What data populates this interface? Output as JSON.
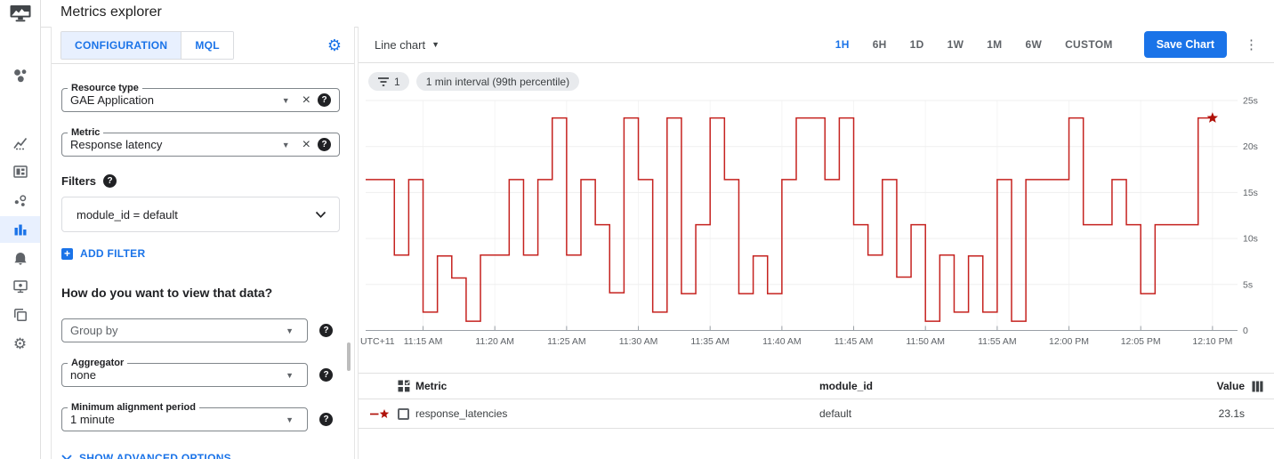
{
  "header": {
    "title": "Metrics explorer",
    "logo_icon": "monitoring-screen-chart-icon"
  },
  "sidebar": {
    "items": [
      {
        "icon": "dots-cluster-icon",
        "name": "overview",
        "active": false
      },
      {
        "icon": "trending-chart-icon",
        "name": "metrics",
        "active": false
      },
      {
        "icon": "dashboard-icon",
        "name": "dashboards",
        "active": false
      },
      {
        "icon": "groups-dots-icon",
        "name": "groups",
        "active": false
      },
      {
        "icon": "bar-chart-icon",
        "name": "metrics-explorer",
        "active": true
      },
      {
        "icon": "bell-icon",
        "name": "alerting",
        "active": false
      },
      {
        "icon": "uptime-monitor-icon",
        "name": "uptime-checks",
        "active": false
      },
      {
        "icon": "copy-layers-icon",
        "name": "services",
        "active": false
      },
      {
        "icon": "gear-icon",
        "name": "settings",
        "active": false
      }
    ]
  },
  "config_panel": {
    "tabs": [
      {
        "label": "CONFIGURATION",
        "active": true
      },
      {
        "label": "MQL",
        "active": false
      }
    ],
    "resource_type": {
      "label": "Resource type",
      "value": "GAE Application"
    },
    "metric": {
      "label": "Metric",
      "value": "Response latency"
    },
    "filters_label": "Filters",
    "filter_value": "module_id = default",
    "add_filter_label": "ADD FILTER",
    "view_question": "How do you want to view that data?",
    "group_by": {
      "placeholder": "Group by"
    },
    "aggregator": {
      "label": "Aggregator",
      "value": "none"
    },
    "min_alignment": {
      "label": "Minimum alignment period",
      "value": "1 minute"
    },
    "show_advanced_label": "SHOW ADVANCED OPTIONS"
  },
  "chart_panel": {
    "chart_type_label": "Line chart",
    "time_ranges": [
      "1H",
      "6H",
      "1D",
      "1W",
      "1M",
      "6W",
      "CUSTOM"
    ],
    "active_time_range": "1H",
    "save_button_label": "Save Chart",
    "filter_chip_count": "1",
    "interval_chip": "1 min interval (99th percentile)"
  },
  "chart_data": {
    "type": "line",
    "step": true,
    "title": "",
    "xlabel": "",
    "ylabel": "",
    "unit": "s",
    "ylim": [
      0,
      25
    ],
    "grid": true,
    "x_axis_prefix": "UTC+11",
    "x_start": "11:11 AM",
    "x_end": "12:10 PM",
    "x_interval_minutes": 1,
    "x_tick_start_minute": 4,
    "x_tick_step": 5,
    "x_tick_labels": [
      "11:15 AM",
      "11:20 AM",
      "11:25 AM",
      "11:30 AM",
      "11:35 AM",
      "11:40 AM",
      "11:45 AM",
      "11:50 AM",
      "11:55 AM",
      "12:00 PM",
      "12:05 PM",
      "12:10 PM"
    ],
    "y_ticks": [
      {
        "value": 25,
        "label": "25s"
      },
      {
        "value": 20,
        "label": "20s"
      },
      {
        "value": 15,
        "label": "15s"
      },
      {
        "value": 10,
        "label": "10s"
      },
      {
        "value": 5,
        "label": "5s"
      },
      {
        "value": 0,
        "label": "0"
      }
    ],
    "series": [
      {
        "name": "response_latencies",
        "color": "#c5221f",
        "end_marker": "star",
        "last_value_label": "23.1s",
        "values": [
          16.4,
          16.4,
          8.2,
          16.4,
          2.0,
          8.1,
          5.7,
          1.0,
          8.2,
          8.2,
          16.4,
          8.2,
          16.4,
          23.1,
          8.2,
          16.4,
          11.5,
          4.1,
          23.1,
          16.4,
          2.0,
          23.1,
          4.0,
          11.5,
          23.1,
          16.4,
          4.0,
          8.1,
          4.0,
          16.4,
          23.1,
          23.1,
          16.4,
          23.1,
          11.5,
          8.2,
          16.4,
          5.8,
          11.5,
          1.0,
          8.2,
          2.0,
          8.1,
          2.0,
          16.4,
          1.0,
          16.4,
          16.4,
          16.4,
          23.1,
          11.5,
          11.5,
          16.4,
          11.5,
          4.0,
          11.5,
          11.5,
          11.5,
          23.1,
          23.1
        ]
      }
    ],
    "legend_position": "table-below"
  },
  "table": {
    "columns": [
      "Metric",
      "module_id",
      "Value"
    ],
    "rows": [
      {
        "metric": "response_latencies",
        "module_id": "default",
        "value": "23.1s"
      }
    ]
  },
  "colors": {
    "accent": "#1a73e8",
    "active_tab_bg": "#e8f0fe",
    "line_red": "#c5221f",
    "star_red": "#b0120a",
    "chip_bg": "#e8eaed",
    "border": "#e0e0e0",
    "text_gray": "#5f6368"
  }
}
